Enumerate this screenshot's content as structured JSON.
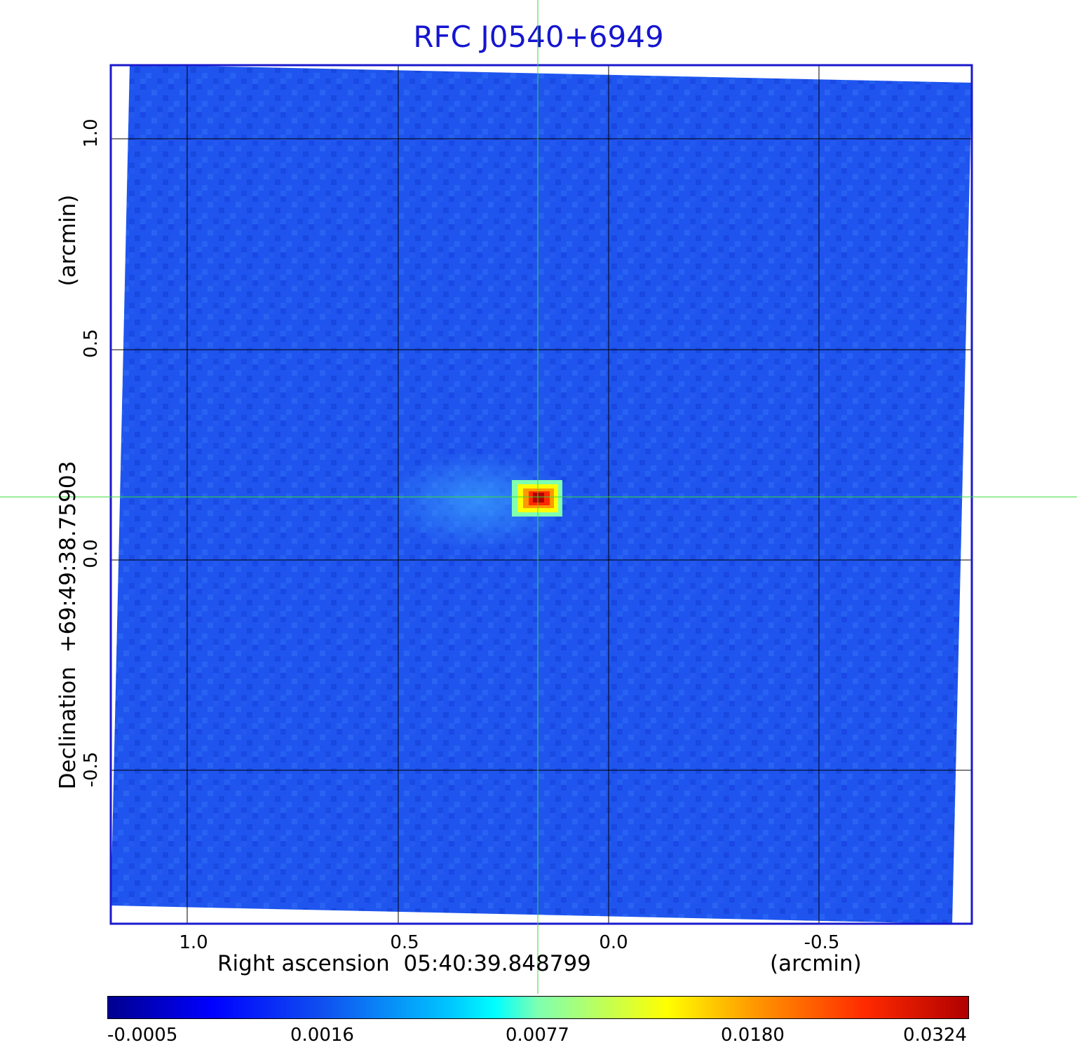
{
  "title": "RFC J0540+6949",
  "x_axis": {
    "label": "Right ascension  05:40:39.848799",
    "unit": "(arcmin)",
    "ticks": [
      "1.0",
      "0.5",
      "0.0",
      "-0.5"
    ]
  },
  "y_axis": {
    "label": "Declination  +69:49:38.75903",
    "unit": "(arcmin)",
    "ticks": [
      "1.0",
      "0.5",
      "0.0",
      "-0.5"
    ]
  },
  "colorbar": {
    "ticks": [
      "-0.0005",
      "0.0016",
      "0.0077",
      "0.0180",
      "0.0324"
    ]
  },
  "colors": {
    "title": "#1515d0",
    "frame": "#1a1acc",
    "background_field": "#1f55ee",
    "crosshair": "#33dd33",
    "grid": "#000000"
  },
  "source": {
    "ra_offset_arcmin": 0.17,
    "dec_offset_arcmin": 0.15
  }
}
